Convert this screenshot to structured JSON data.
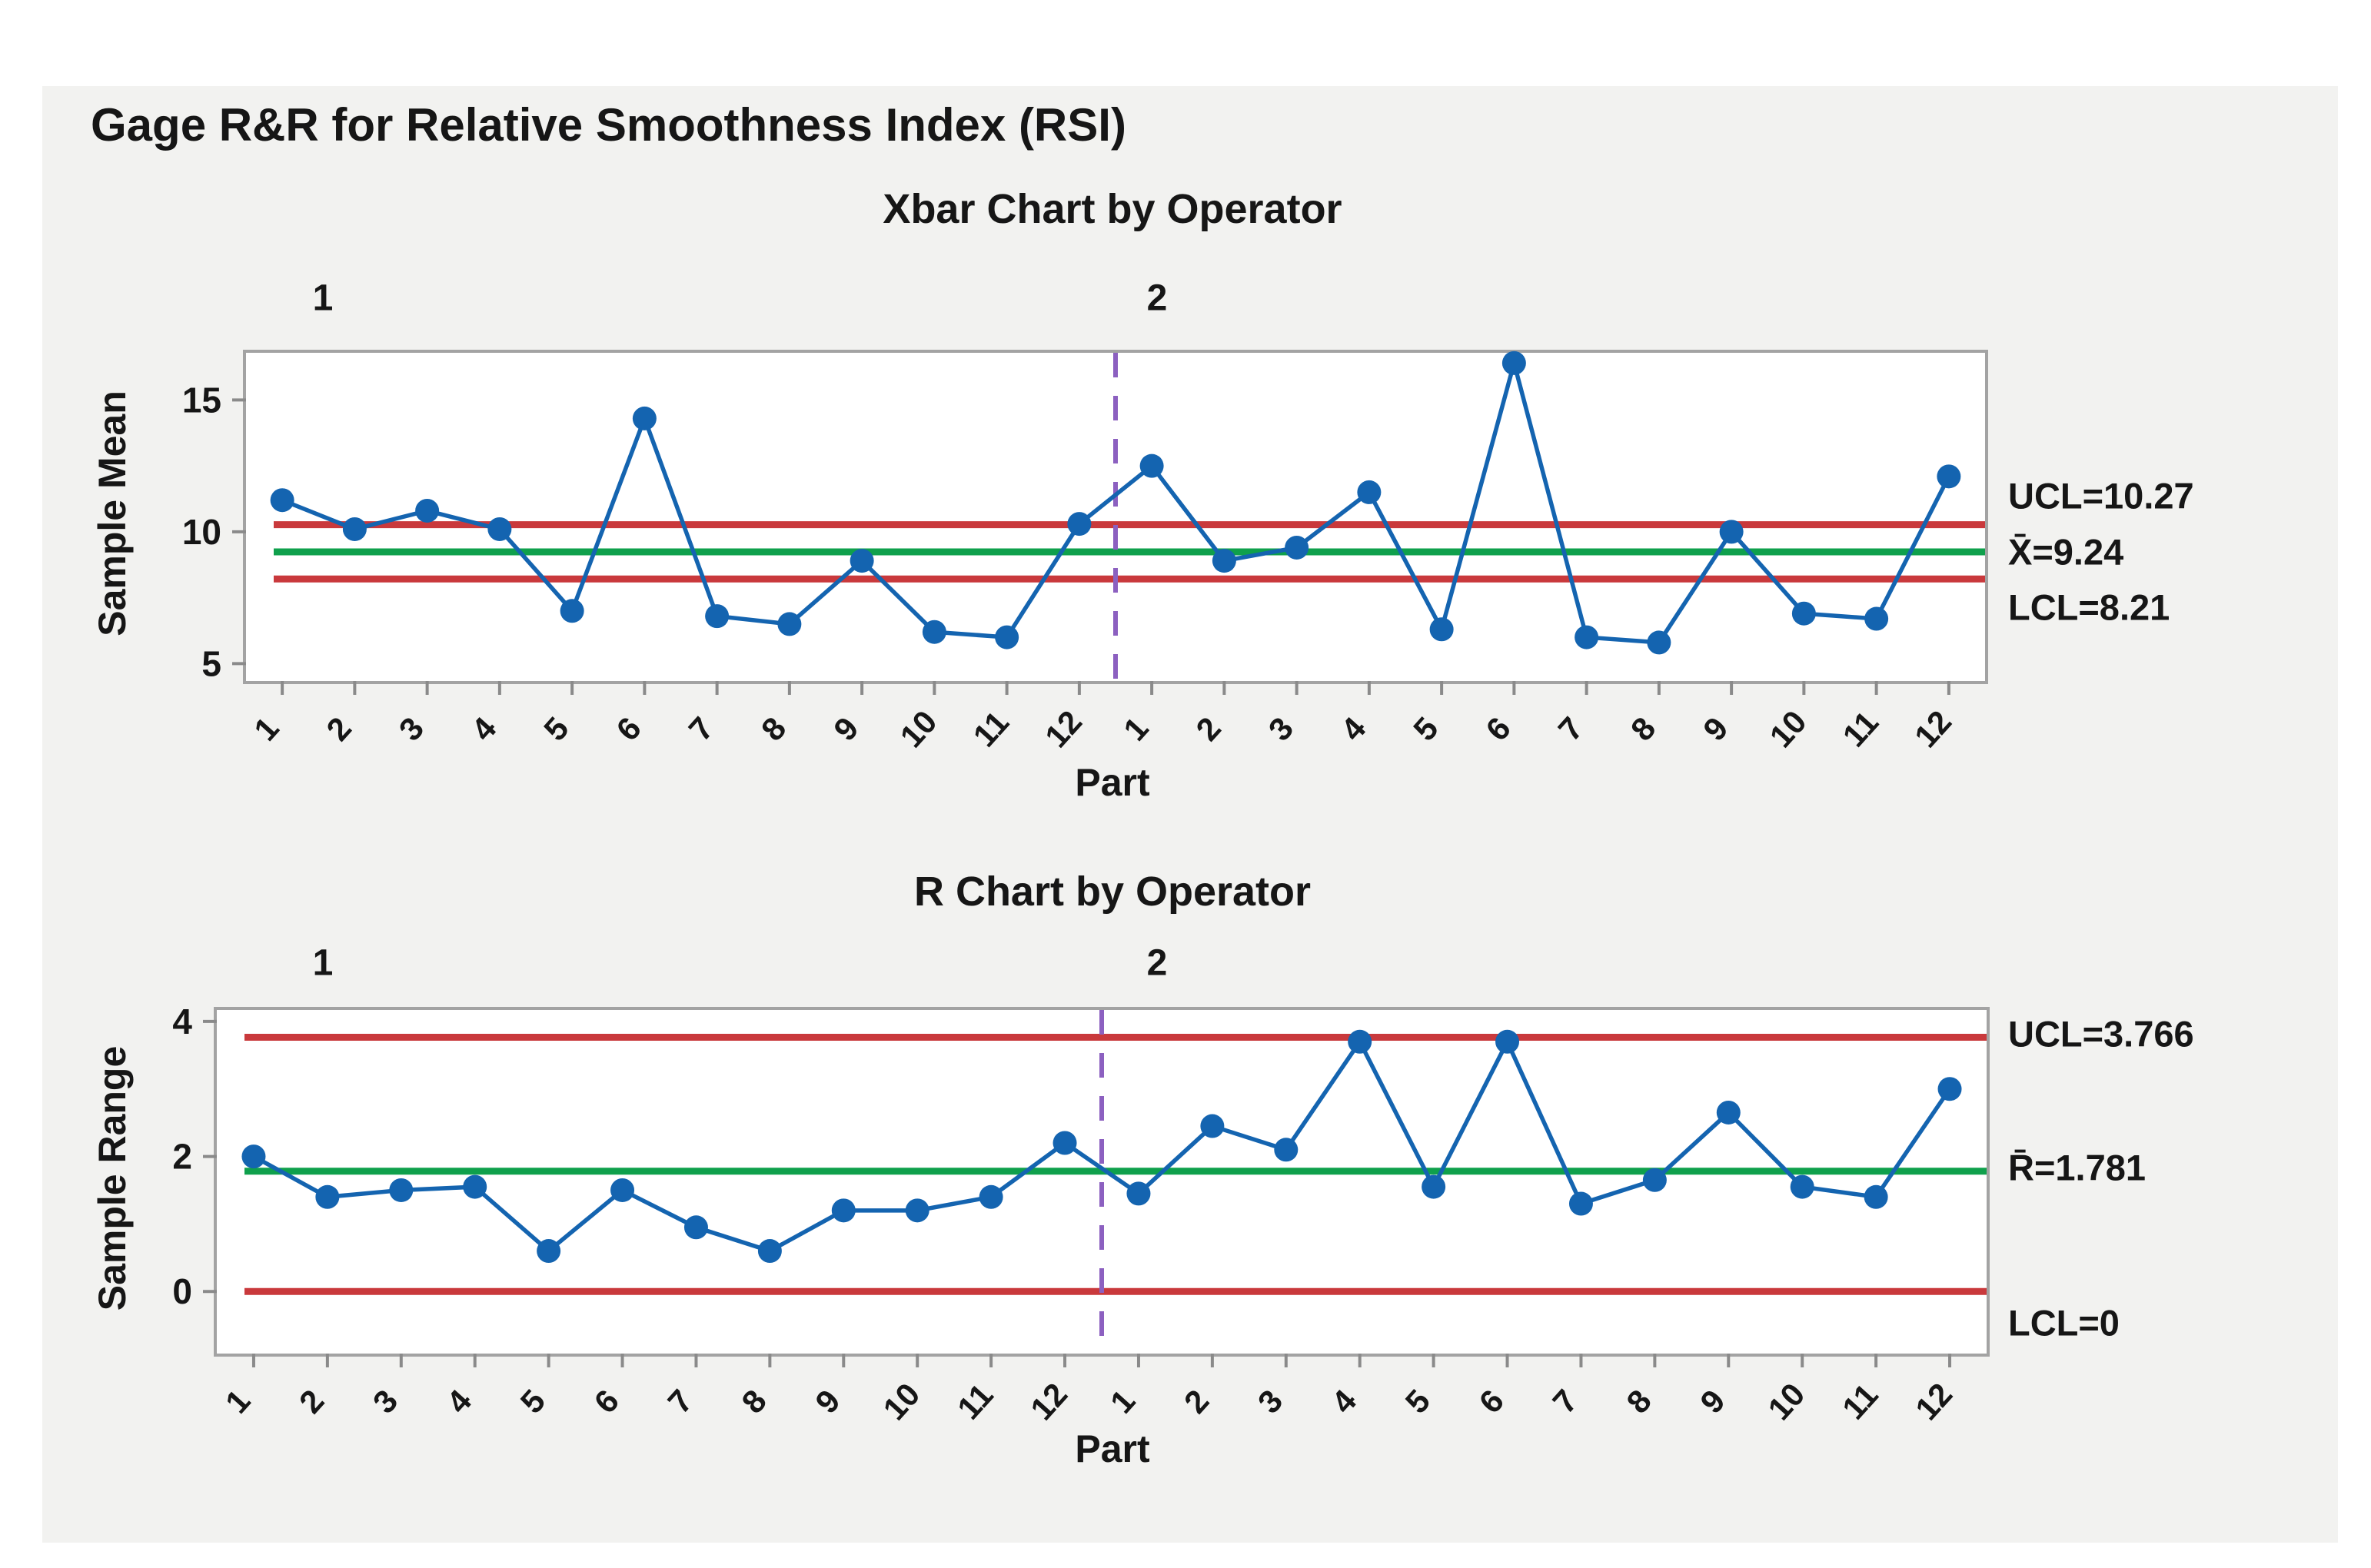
{
  "title": "Gage R&R for Relative Smoothness Index (RSI)",
  "colors": {
    "series_blue": "#1464b0",
    "limit_red": "#c9393c",
    "center_green": "#0fa04c",
    "separator_purple": "#8c60c0",
    "axis_gray": "#8a8a8a",
    "panel_bg": "#f2f2f0",
    "text": "#161616"
  },
  "chart_data": [
    {
      "type": "line",
      "title": "Xbar Chart by Operator",
      "xlabel": "Part",
      "ylabel": "Sample Mean",
      "operators": [
        "1",
        "2"
      ],
      "categories": [
        "1",
        "2",
        "3",
        "4",
        "5",
        "6",
        "7",
        "8",
        "9",
        "10",
        "11",
        "12"
      ],
      "series": [
        {
          "name": "Operator 1",
          "values": [
            11.2,
            10.1,
            10.8,
            10.1,
            7.0,
            14.3,
            6.8,
            6.5,
            8.9,
            6.2,
            6.0,
            10.3
          ]
        },
        {
          "name": "Operator 2",
          "values": [
            12.5,
            8.9,
            9.4,
            11.5,
            6.3,
            16.4,
            6.0,
            5.8,
            10.0,
            6.9,
            6.7,
            12.1
          ]
        }
      ],
      "yticks": [
        5,
        10,
        15
      ],
      "ylim": [
        4.34,
        16.79
      ],
      "reference_lines": {
        "ucl": 10.27,
        "center": 9.24,
        "lcl": 8.21
      },
      "annotations": [
        "UCL=10.27",
        "X̄=9.24",
        "LCL=8.21"
      ],
      "legend_position": "none",
      "grid": false
    },
    {
      "type": "line",
      "title": "R Chart by Operator",
      "xlabel": "Part",
      "ylabel": "Sample Range",
      "operators": [
        "1",
        "2"
      ],
      "categories": [
        "1",
        "2",
        "3",
        "4",
        "5",
        "6",
        "7",
        "8",
        "9",
        "10",
        "11",
        "12"
      ],
      "series": [
        {
          "name": "Operator 1",
          "values": [
            2.0,
            1.4,
            1.5,
            1.55,
            0.6,
            1.5,
            0.95,
            0.6,
            1.2,
            1.2,
            1.4,
            2.2
          ]
        },
        {
          "name": "Operator 2",
          "values": [
            1.45,
            2.45,
            2.1,
            3.7,
            1.55,
            3.7,
            1.3,
            1.65,
            2.65,
            1.55,
            1.4,
            3.0
          ]
        }
      ],
      "yticks": [
        0,
        2,
        4
      ],
      "ylim": [
        -0.92,
        4.17
      ],
      "reference_lines": {
        "ucl": 3.766,
        "center": 1.781,
        "lcl": 0
      },
      "annotations": [
        "UCL=3.766",
        "R̄=1.781",
        "LCL=0"
      ],
      "legend_position": "none",
      "grid": false
    }
  ]
}
